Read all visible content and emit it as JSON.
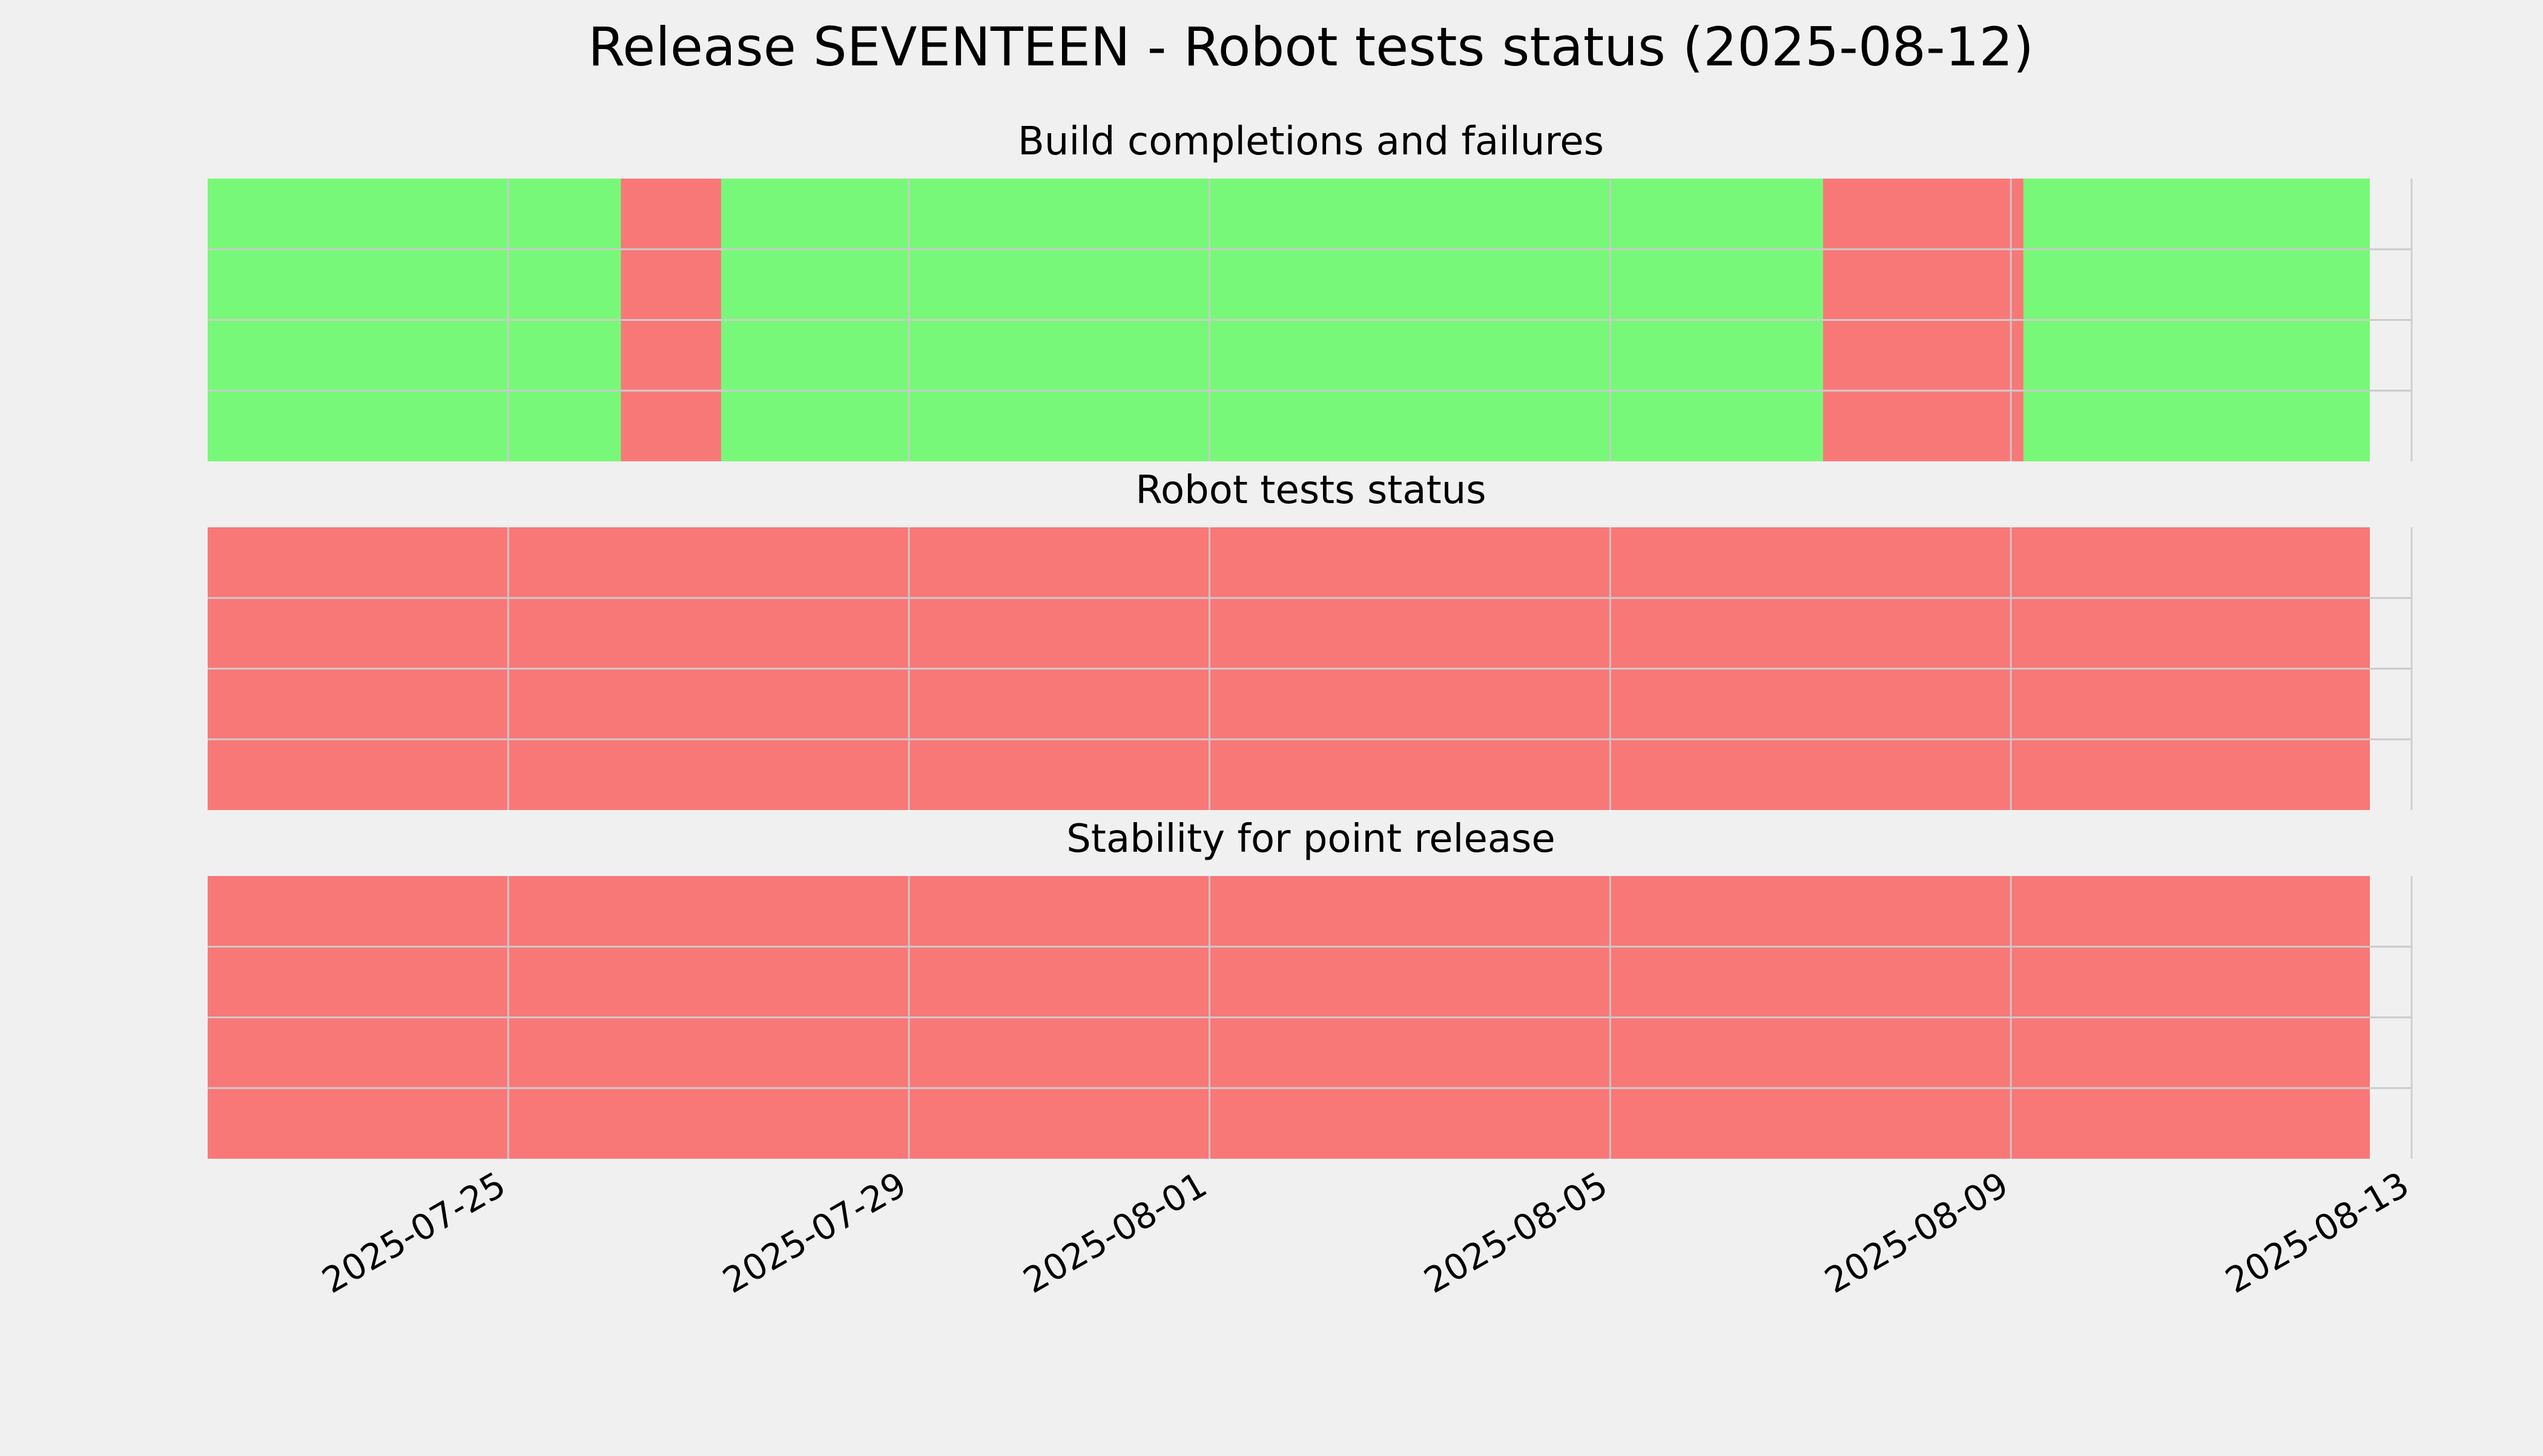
{
  "colors": {
    "background": "#f0f0f0",
    "ok": "#00ff00",
    "fail": "#ff0000",
    "grid": "#cbcbcb"
  },
  "chart_data": {
    "type": "timeline",
    "title": "Release SEVENTEEN - Robot tests status (2025-08-12)",
    "x_axis": {
      "type": "date",
      "range": [
        "2025-07-22",
        "2025-08-13"
      ],
      "ticks": [
        "2025-07-25",
        "2025-07-29",
        "2025-08-01",
        "2025-08-05",
        "2025-08-09",
        "2025-08-13"
      ]
    },
    "grid": true,
    "panels": [
      {
        "title": "Build completions and failures",
        "segments": [
          {
            "start": "2025-07-22",
            "end": "2025-07-26 03:00",
            "status": "ok"
          },
          {
            "start": "2025-07-26 03:00",
            "end": "2025-07-27 03:00",
            "status": "fail"
          },
          {
            "start": "2025-07-27 03:00",
            "end": "2025-08-07 03:00",
            "status": "ok"
          },
          {
            "start": "2025-08-07 03:00",
            "end": "2025-08-09 03:00",
            "status": "fail"
          },
          {
            "start": "2025-08-09 03:00",
            "end": "2025-08-12 14:00",
            "status": "ok"
          }
        ]
      },
      {
        "title": "Robot tests status",
        "segments": [
          {
            "start": "2025-07-22",
            "end": "2025-08-12 14:00",
            "status": "fail"
          }
        ]
      },
      {
        "title": "Stability for point release",
        "segments": [
          {
            "start": "2025-07-22",
            "end": "2025-08-12 14:00",
            "status": "fail"
          }
        ]
      }
    ]
  }
}
